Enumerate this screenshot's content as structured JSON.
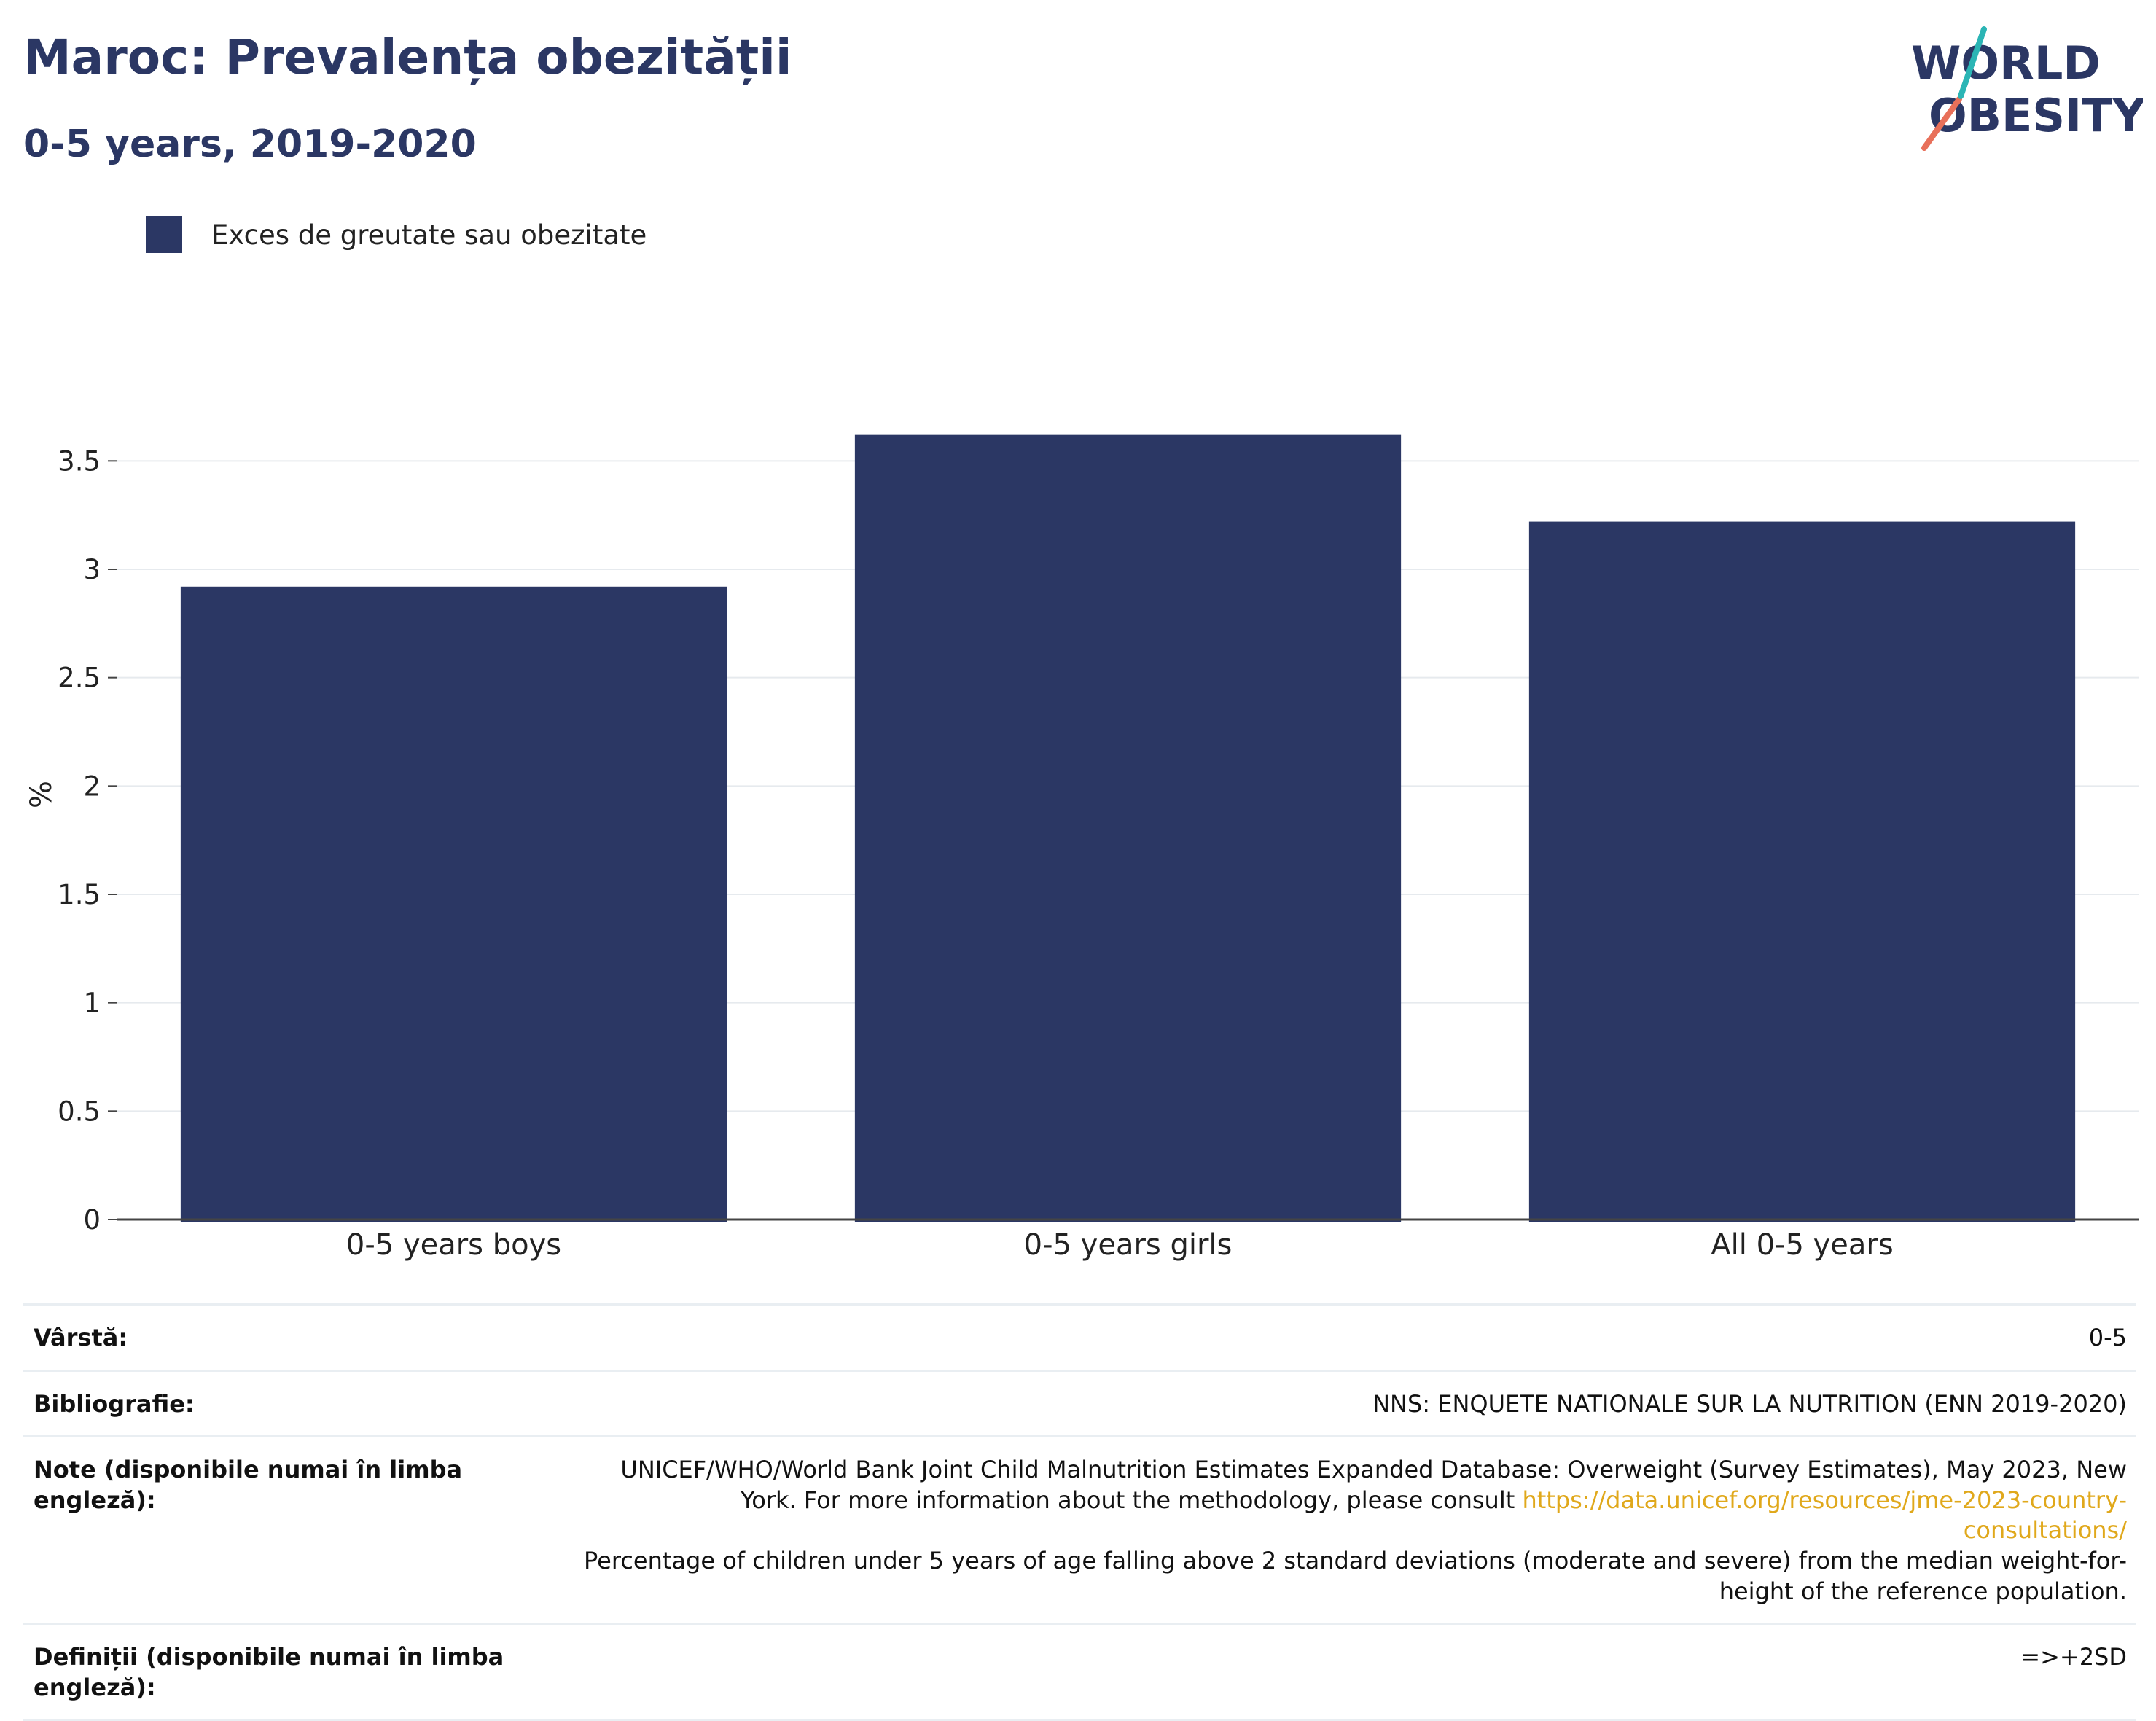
{
  "title": "Maroc: Prevalența obezității",
  "subtitle": "0-5 years, 2019-2020",
  "logo": {
    "line1": "WORLD",
    "line2": "OBESITY"
  },
  "legend": {
    "label": "Exces de greutate sau obezitate",
    "color": "#2b3764"
  },
  "chart_data": {
    "type": "bar",
    "categories": [
      "0-5 years boys",
      "0-5 years girls",
      "All 0-5 years"
    ],
    "series": [
      {
        "name": "Exces de greutate sau obezitate",
        "values": [
          2.92,
          3.62,
          3.22
        ],
        "color": "#2b3764"
      }
    ],
    "ylabel": "%",
    "xlabel": "",
    "ylim": [
      0,
      3.75
    ],
    "yticks": [
      0,
      0.5,
      1,
      1.5,
      2,
      2.5,
      3,
      3.5
    ],
    "ytick_labels": [
      "0",
      "0.5",
      "1",
      "1.5",
      "2",
      "2.5",
      "3",
      "3.5"
    ],
    "grid": true,
    "legend_position": "top-left"
  },
  "info": {
    "age_label": "Vârstă:",
    "age_value": "0-5",
    "bibliography_label": "Bibliografie:",
    "bibliography_value": "NNS: ENQUETE NATIONALE SUR LA NUTRITION (ENN 2019-2020)",
    "notes_label": "Note (disponibile numai în limba engleză):",
    "notes_text_1": "UNICEF/WHO/World Bank Joint Child Malnutrition Estimates Expanded Database: Overweight (Survey Estimates), May 2023, New York. For more information about the methodology, please consult ",
    "notes_link": "https://data.unicef.org/resources/jme-2023-country-consultations/",
    "notes_text_2": "Percentage of children under 5 years of age falling above 2 standard deviations (moderate and severe) from the median weight-for-height of the reference population.",
    "definitions_label": "Definiții (disponibile numai în limba engleză):",
    "definitions_value": "=>+2SD"
  }
}
